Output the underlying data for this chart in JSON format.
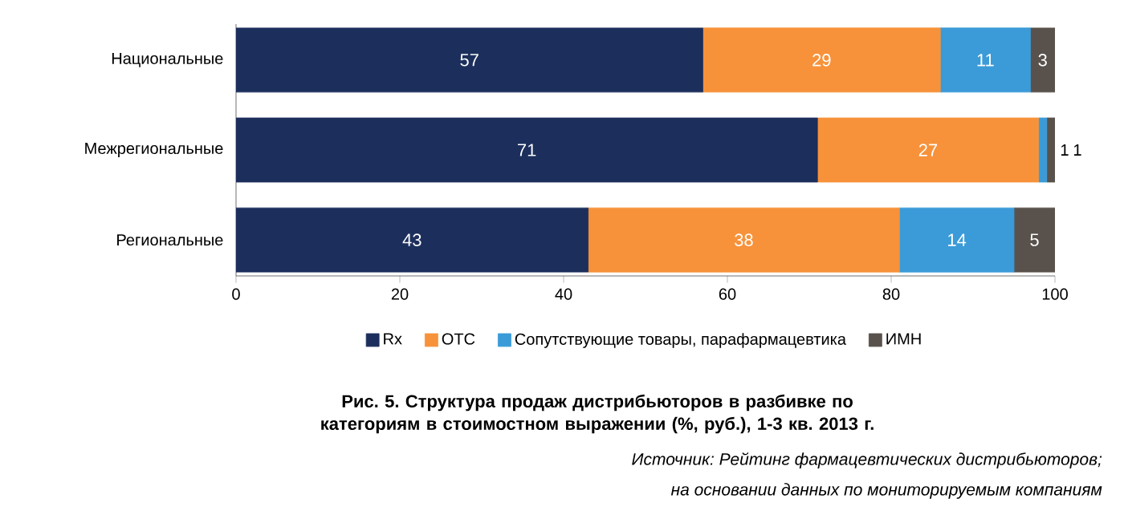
{
  "chart_data": {
    "type": "bar",
    "orientation": "horizontal",
    "stacked": true,
    "title": "Рис. 5. Структура продаж дистрибьюторов в разбивке по категориям в стоимостном выражении (%, руб.), 1-3 кв. 2013 г.",
    "categories": [
      "Национальные",
      "Межрегиональные",
      "Региональные"
    ],
    "series": [
      {
        "name": "Rx",
        "color": "#1c2f5c",
        "values": [
          57,
          71,
          43
        ]
      },
      {
        "name": "OTC",
        "color": "#f7923a",
        "values": [
          29,
          27,
          38
        ]
      },
      {
        "name": "Сопутствующие товары, парафармацевтика",
        "color": "#3b9bd8",
        "values": [
          11,
          1,
          14
        ]
      },
      {
        "name": "ИМН",
        "color": "#59524c",
        "values": [
          3,
          1,
          5
        ]
      }
    ],
    "xlim": [
      0,
      100
    ],
    "xticks": [
      0,
      20,
      40,
      60,
      80,
      100
    ],
    "data_labels": true,
    "legend": "bottom",
    "grid": false,
    "annotations": [
      "Источник: Рейтинг фармацевтических дистрибьюторов;",
      "на основании данных по мониторируемым компаниям"
    ]
  }
}
